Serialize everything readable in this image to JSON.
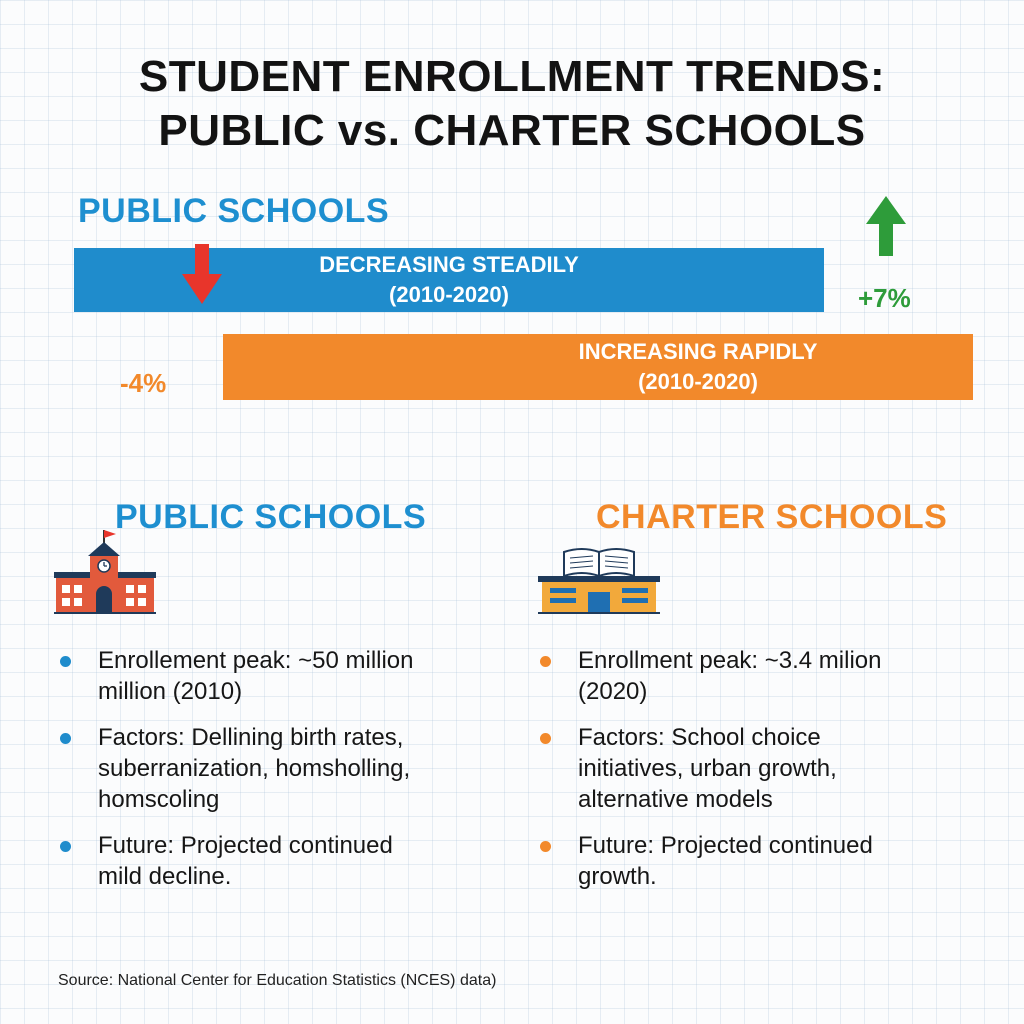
{
  "title": {
    "line1": "STUDENT ENROLLMENT TRENDS:",
    "line2": "PUBLIC vs. CHARTER SCHOOLS"
  },
  "trend": {
    "section_label": "PUBLIC SCHOOLS",
    "public_bar": {
      "line1": "DECREASING STEADILY",
      "line2": "(2010-2020)",
      "change": "-4%"
    },
    "charter_bar": {
      "line1": "INCREASING RAPIDLY",
      "line2": "(2010-2020)",
      "change": "+7%"
    }
  },
  "public": {
    "title": "PUBLIC SCHOOLS",
    "bullets": [
      {
        "lines": [
          "Enrollement peak: ~50 million",
          "million (2010)"
        ]
      },
      {
        "lines": [
          "Factors: Dellining birth rates,",
          "suberranization, homsholling,",
          "homscoling"
        ]
      },
      {
        "lines": [
          "Future: Projected continued",
          "mild decline."
        ]
      }
    ]
  },
  "charter": {
    "title": "CHARTER SCHOOLS",
    "bullets": [
      {
        "lines": [
          "Enrollment peak: ~3.4 milion",
          "(2020)"
        ]
      },
      {
        "lines": [
          "Factors: School choice",
          "initiatives, urban growth,",
          "alternative models"
        ]
      },
      {
        "lines": [
          "Future: Projected continued",
          "growth."
        ]
      }
    ]
  },
  "source": "Source: National Center for Education Statistics (NCES) data)",
  "icons": {
    "down_arrow": "down-arrow-icon",
    "up_arrow": "up-arrow-icon",
    "public_building": "school-building-icon",
    "charter_building": "charter-school-icon"
  },
  "colors": {
    "blue": "#1f8ccc",
    "orange": "#f2892b",
    "red": "#e8352b",
    "green": "#2e9c3a"
  }
}
